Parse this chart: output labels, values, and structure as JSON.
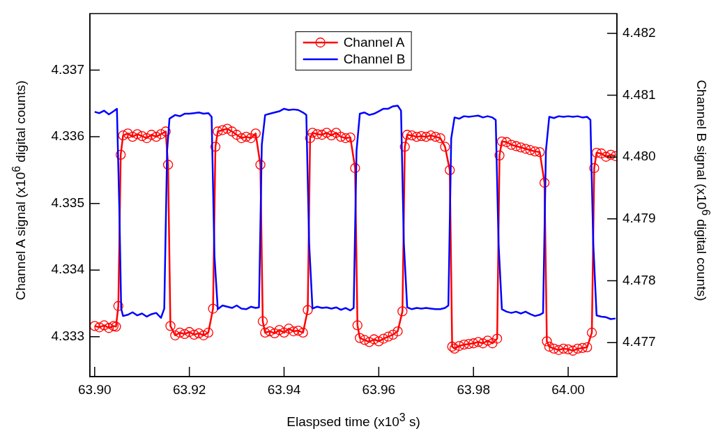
{
  "chart_data": {
    "type": "line",
    "xlabel": "Elaspsed time (x10$^{3}$ s)",
    "ylabel": "Channel A signal (x10$^{6}$  digital counts)",
    "y2label": "Channel B signal (x10$^{6}$  digital counts)",
    "xlim": [
      63.899,
      64.0103
    ],
    "xticks": [
      {
        "value": 63.9,
        "label": "63.90"
      },
      {
        "value": 63.92,
        "label": "63.92"
      },
      {
        "value": 63.94,
        "label": "63.94"
      },
      {
        "value": 63.96,
        "label": "63.96"
      },
      {
        "value": 63.98,
        "label": "63.98"
      },
      {
        "value": 64.0,
        "label": "64.00"
      }
    ],
    "ylim": [
      4.3324,
      4.33785
    ],
    "yticks": [
      4.333,
      4.334,
      4.335,
      4.336,
      4.337
    ],
    "y2lim": [
      4.47645,
      4.48232
    ],
    "y2ticks": [
      4.477,
      4.478,
      4.479,
      {
        "value": 4.48,
        "label": "4.480"
      },
      4.481,
      4.482
    ],
    "grid": false,
    "legend": "top",
    "line_style": "solid",
    "series": [
      {
        "name": "Channel A",
        "color": "#ff0000",
        "marker": "circle",
        "axis": "y",
        "x": [
          63.9,
          63.901,
          63.902,
          63.903,
          63.904,
          63.9045,
          63.905,
          63.9055,
          63.906,
          63.907,
          63.908,
          63.909,
          63.91,
          63.911,
          63.912,
          63.913,
          63.914,
          63.915,
          63.9155,
          63.916,
          63.917,
          63.918,
          63.919,
          63.92,
          63.921,
          63.922,
          63.923,
          63.924,
          63.925,
          63.9255,
          63.926,
          63.927,
          63.928,
          63.929,
          63.93,
          63.931,
          63.932,
          63.933,
          63.934,
          63.935,
          63.9355,
          63.936,
          63.937,
          63.938,
          63.939,
          63.94,
          63.941,
          63.942,
          63.943,
          63.944,
          63.945,
          63.9455,
          63.946,
          63.947,
          63.948,
          63.949,
          63.95,
          63.951,
          63.952,
          63.953,
          63.954,
          63.955,
          63.9555,
          63.956,
          63.957,
          63.958,
          63.959,
          63.96,
          63.961,
          63.962,
          63.963,
          63.964,
          63.965,
          63.9655,
          63.966,
          63.967,
          63.968,
          63.969,
          63.97,
          63.971,
          63.972,
          63.973,
          63.974,
          63.975,
          63.9755,
          63.976,
          63.977,
          63.978,
          63.979,
          63.98,
          63.981,
          63.982,
          63.983,
          63.984,
          63.985,
          63.9855,
          63.986,
          63.987,
          63.988,
          63.989,
          63.99,
          63.991,
          63.992,
          63.993,
          63.994,
          63.995,
          63.9955,
          63.996,
          63.997,
          63.998,
          63.999,
          64.0,
          64.001,
          64.002,
          64.003,
          64.004,
          64.005,
          64.0055,
          64.006,
          64.007,
          64.008,
          64.009,
          64.01
        ],
        "values": [
          4.33316,
          4.33314,
          4.33317,
          4.33313,
          4.33316,
          4.33315,
          4.33346,
          4.33573,
          4.33602,
          4.33605,
          4.336,
          4.33604,
          4.33601,
          4.33598,
          4.33603,
          4.336,
          4.33604,
          4.33608,
          4.33558,
          4.33316,
          4.33302,
          4.33306,
          4.33304,
          4.33307,
          4.33303,
          4.33305,
          4.33302,
          4.33306,
          4.33342,
          4.33585,
          4.33608,
          4.3361,
          4.33612,
          4.33608,
          4.33603,
          4.33598,
          4.336,
          4.33598,
          4.33605,
          4.33558,
          4.33323,
          4.33306,
          4.33308,
          4.33305,
          4.3331,
          4.33306,
          4.33312,
          4.33308,
          4.33309,
          4.33306,
          4.3334,
          4.33598,
          4.33606,
          4.33604,
          4.33603,
          4.33606,
          4.33602,
          4.33606,
          4.336,
          4.33598,
          4.33599,
          4.33553,
          4.33317,
          4.33298,
          4.33295,
          4.33292,
          4.33296,
          4.33293,
          4.33297,
          4.333,
          4.33303,
          4.33308,
          4.33338,
          4.33585,
          4.33603,
          4.33602,
          4.336,
          4.33601,
          4.336,
          4.33602,
          4.336,
          4.33598,
          4.33585,
          4.3355,
          4.33285,
          4.33282,
          4.33286,
          4.33288,
          4.33289,
          4.3329,
          4.33292,
          4.3329,
          4.33294,
          4.3329,
          4.33297,
          4.33572,
          4.33593,
          4.33592,
          4.33588,
          4.33586,
          4.33584,
          4.33582,
          4.3358,
          4.33578,
          4.33577,
          4.33531,
          4.33293,
          4.33285,
          4.33282,
          4.3328,
          4.33282,
          4.33281,
          4.33279,
          4.33282,
          4.33283,
          4.33284,
          4.33306,
          4.33553,
          4.33576,
          4.33575,
          4.3357,
          4.33573,
          4.33571
        ]
      },
      {
        "name": "Channel B",
        "color": "#0000ff",
        "marker": "none",
        "axis": "y2",
        "x": [
          63.9,
          63.901,
          63.902,
          63.903,
          63.904,
          63.9047,
          63.9052,
          63.9056,
          63.906,
          63.907,
          63.908,
          63.909,
          63.91,
          63.911,
          63.912,
          63.913,
          63.914,
          63.9147,
          63.9153,
          63.9158,
          63.917,
          63.918,
          63.919,
          63.92,
          63.921,
          63.922,
          63.923,
          63.924,
          63.9247,
          63.9253,
          63.926,
          63.927,
          63.928,
          63.929,
          63.93,
          63.931,
          63.932,
          63.933,
          63.934,
          63.9347,
          63.9353,
          63.936,
          63.937,
          63.938,
          63.939,
          63.94,
          63.941,
          63.942,
          63.943,
          63.944,
          63.9447,
          63.9453,
          63.946,
          63.947,
          63.948,
          63.949,
          63.95,
          63.951,
          63.952,
          63.953,
          63.954,
          63.9547,
          63.9553,
          63.956,
          63.957,
          63.958,
          63.959,
          63.96,
          63.961,
          63.962,
          63.963,
          63.964,
          63.9647,
          63.9653,
          63.966,
          63.967,
          63.968,
          63.969,
          63.97,
          63.971,
          63.972,
          63.973,
          63.974,
          63.9747,
          63.9753,
          63.976,
          63.977,
          63.978,
          63.979,
          63.98,
          63.981,
          63.982,
          63.983,
          63.984,
          63.9847,
          63.9853,
          63.986,
          63.987,
          63.988,
          63.989,
          63.99,
          63.991,
          63.992,
          63.993,
          63.994,
          63.9947,
          63.9953,
          63.996,
          63.997,
          63.998,
          63.999,
          64.0,
          64.001,
          64.002,
          64.003,
          64.004,
          64.0047,
          64.0053,
          64.006,
          64.007,
          64.008,
          64.009,
          64.01
        ],
        "values": [
          4.48073,
          4.48071,
          4.48075,
          4.48069,
          4.48074,
          4.48078,
          4.4792,
          4.47755,
          4.47743,
          4.47745,
          4.47749,
          4.47744,
          4.47747,
          4.47742,
          4.47746,
          4.47748,
          4.4774,
          4.47755,
          4.4801,
          4.48062,
          4.48068,
          4.48066,
          4.4807,
          4.4807,
          4.48071,
          4.48072,
          4.4807,
          4.48071,
          4.48065,
          4.4784,
          4.47754,
          4.4776,
          4.47758,
          4.47756,
          4.4776,
          4.47755,
          4.47754,
          4.47758,
          4.47756,
          4.47757,
          4.4802,
          4.48068,
          4.4807,
          4.48072,
          4.48074,
          4.48078,
          4.48076,
          4.48077,
          4.48076,
          4.48072,
          4.48068,
          4.4786,
          4.47755,
          4.47758,
          4.47756,
          4.47757,
          4.47755,
          4.47757,
          4.47753,
          4.47756,
          4.47752,
          4.47756,
          4.4801,
          4.4807,
          4.48072,
          4.48068,
          4.4807,
          4.48074,
          4.48078,
          4.48078,
          4.48082,
          4.48083,
          4.48075,
          4.4786,
          4.47757,
          4.47754,
          4.47756,
          4.47755,
          4.47756,
          4.47755,
          4.47754,
          4.47754,
          4.47756,
          4.4776,
          4.4803,
          4.48064,
          4.48062,
          4.48066,
          4.48065,
          4.48066,
          4.48067,
          4.48064,
          4.48066,
          4.48064,
          4.4806,
          4.4786,
          4.47754,
          4.4775,
          4.47748,
          4.4775,
          4.47747,
          4.4775,
          4.47746,
          4.47743,
          4.47745,
          4.47748,
          4.4801,
          4.48065,
          4.48063,
          4.48066,
          4.48065,
          4.48066,
          4.48065,
          4.48066,
          4.48064,
          4.48065,
          4.4806,
          4.4786,
          4.47744,
          4.47742,
          4.47741,
          4.47738,
          4.47739
        ]
      }
    ]
  }
}
